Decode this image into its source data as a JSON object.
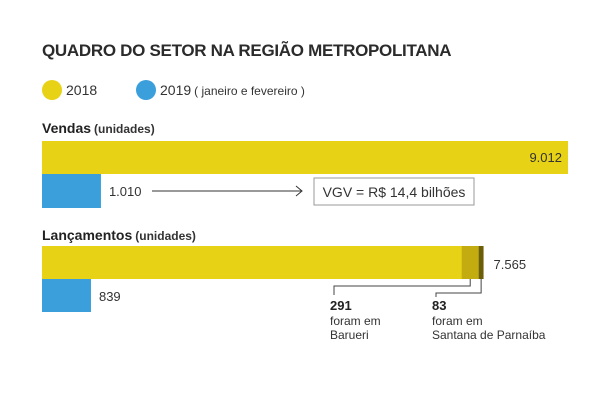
{
  "chart_data": {
    "type": "bar",
    "title": "QUADRO DO SETOR NA REGIÃO METROPOLITANA",
    "legend": [
      {
        "label": "2018",
        "note": "",
        "color": "#e8d215"
      },
      {
        "label": "2019",
        "note": "( janeiro e fevereiro )",
        "color": "#3a9fdb"
      }
    ],
    "xlim": [
      0,
      9012
    ],
    "groups": [
      {
        "title": "Vendas",
        "unit": "(unidades)",
        "bars": [
          {
            "series": "2018",
            "value": 9012,
            "label": "9.012"
          },
          {
            "series": "2019",
            "value": 1010,
            "label": "1.010"
          }
        ],
        "annotation": "VGV = R$ 14,4 bilhões"
      },
      {
        "title": "Lançamentos",
        "unit": "(unidades)",
        "bars": [
          {
            "series": "2018",
            "value": 7565,
            "label": "7.565",
            "segments": [
              {
                "value": 291,
                "label": "291",
                "line1": "foram em",
                "line2": "Barueri",
                "color": "#c2ac10"
              },
              {
                "value": 83,
                "label": "83",
                "line1": "foram em",
                "line2": "Santana de Parnaíba",
                "color": "#6b5e0a"
              }
            ]
          },
          {
            "series": "2019",
            "value": 839,
            "label": "839"
          }
        ]
      }
    ]
  }
}
